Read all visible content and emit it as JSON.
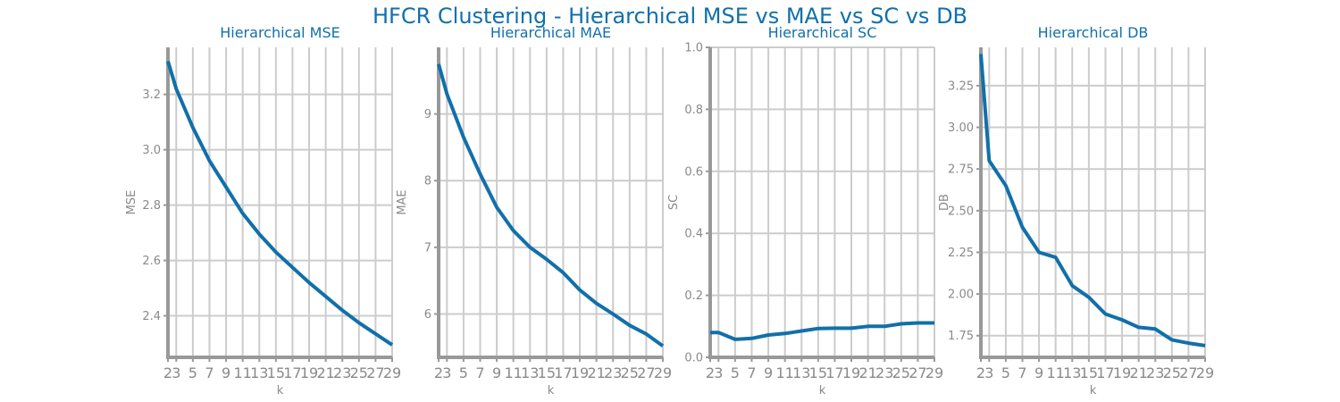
{
  "title": "HFCR Clustering - Hierarchical MSE vs MAE vs SC vs DB",
  "chart_data": [
    {
      "type": "line",
      "title": "Hierarchical MSE",
      "xlabel": "k",
      "ylabel": "MSE",
      "x": [
        2,
        3,
        5,
        7,
        9,
        11,
        13,
        15,
        17,
        19,
        21,
        23,
        25,
        27,
        29
      ],
      "x_ticks": [
        "2",
        "3",
        "5",
        "7",
        "9",
        "11",
        "13",
        "15",
        "17",
        "19",
        "21",
        "23",
        "25",
        "27",
        "29"
      ],
      "values": [
        3.32,
        3.22,
        3.08,
        2.96,
        2.865,
        2.77,
        2.695,
        2.63,
        2.575,
        2.52,
        2.47,
        2.42,
        2.375,
        2.335,
        2.295
      ],
      "ylim": [
        2.25,
        3.37
      ],
      "y_ticks": [
        2.4,
        2.6,
        2.8,
        3.0,
        3.2
      ],
      "y_tick_labels": [
        "2.4",
        "2.6",
        "2.8",
        "3.0",
        "3.2"
      ],
      "grid": true
    },
    {
      "type": "line",
      "title": "Hierarchical MAE",
      "xlabel": "k",
      "ylabel": "MAE",
      "x": [
        2,
        3,
        5,
        7,
        9,
        11,
        13,
        15,
        17,
        19,
        21,
        23,
        25,
        27,
        29
      ],
      "x_ticks": [
        "2",
        "3",
        "5",
        "7",
        "9",
        "11",
        "13",
        "15",
        "17",
        "19",
        "21",
        "23",
        "25",
        "27",
        "29"
      ],
      "values": [
        9.75,
        9.3,
        8.65,
        8.1,
        7.6,
        7.25,
        7.0,
        6.82,
        6.62,
        6.36,
        6.16,
        6.0,
        5.83,
        5.7,
        5.52
      ],
      "ylim": [
        5.35,
        10.0
      ],
      "y_ticks": [
        6,
        7,
        8,
        9
      ],
      "y_tick_labels": [
        "6",
        "7",
        "8",
        "9"
      ],
      "grid": true
    },
    {
      "type": "line",
      "title": "Hierarchical SC",
      "xlabel": "k",
      "ylabel": "SC",
      "x": [
        2,
        3,
        5,
        7,
        9,
        11,
        13,
        15,
        17,
        19,
        21,
        23,
        25,
        27,
        29
      ],
      "x_ticks": [
        "2",
        "3",
        "5",
        "7",
        "9",
        "11",
        "13",
        "15",
        "17",
        "19",
        "21",
        "23",
        "25",
        "27",
        "29"
      ],
      "values": [
        0.08,
        0.08,
        0.058,
        0.061,
        0.072,
        0.077,
        0.085,
        0.093,
        0.094,
        0.094,
        0.1,
        0.1,
        0.108,
        0.111,
        0.111
      ],
      "ylim": [
        0.0,
        1.0
      ],
      "y_ticks": [
        0.0,
        0.2,
        0.4,
        0.6,
        0.8,
        1.0
      ],
      "y_tick_labels": [
        "0.0",
        "0.2",
        "0.4",
        "0.6",
        "0.8",
        "1.0"
      ],
      "grid": true
    },
    {
      "type": "line",
      "title": "Hierarchical DB",
      "xlabel": "k",
      "ylabel": "DB",
      "x": [
        2,
        3,
        5,
        7,
        9,
        11,
        13,
        15,
        17,
        19,
        21,
        23,
        25,
        27,
        29
      ],
      "x_ticks": [
        "2",
        "3",
        "5",
        "7",
        "9",
        "11",
        "13",
        "15",
        "17",
        "19",
        "21",
        "23",
        "25",
        "27",
        "29"
      ],
      "values": [
        3.44,
        2.8,
        2.65,
        2.4,
        2.25,
        2.22,
        2.05,
        1.98,
        1.88,
        1.845,
        1.8,
        1.79,
        1.725,
        1.705,
        1.69
      ],
      "ylim": [
        1.62,
        3.48
      ],
      "y_ticks": [
        1.75,
        2.0,
        2.25,
        2.5,
        2.75,
        3.0,
        3.25
      ],
      "y_tick_labels": [
        "1.75",
        "2.00",
        "2.25",
        "2.50",
        "2.75",
        "3.00",
        "3.25"
      ],
      "grid": true
    }
  ],
  "colors": {
    "line": "#1170aa",
    "title": "#1170aa",
    "grid": "#cccccc",
    "axis": "#999999",
    "text": "#8a8a8a"
  }
}
